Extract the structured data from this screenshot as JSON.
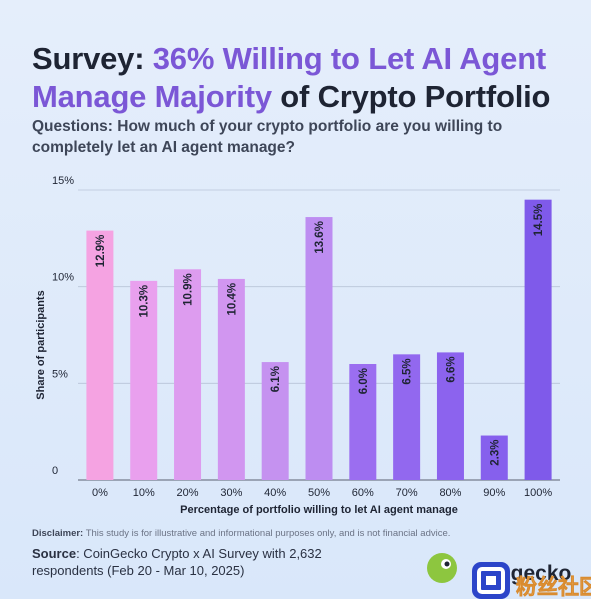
{
  "header": {
    "title_part1": "Survey: ",
    "title_accent1": "36% Willing to Let AI Agent",
    "title_accent2": "Manage Majority",
    "title_part2": " of Crypto Portfolio",
    "subtitle": "Questions: How much of your crypto portfolio are you willing to completely let an AI agent manage?"
  },
  "chart_data": {
    "type": "bar",
    "categories": [
      "0%",
      "10%",
      "20%",
      "30%",
      "40%",
      "50%",
      "60%",
      "70%",
      "80%",
      "90%",
      "100%"
    ],
    "values": [
      12.9,
      10.3,
      10.9,
      10.4,
      6.1,
      13.6,
      6.0,
      6.5,
      6.6,
      2.3,
      14.5
    ],
    "value_labels": [
      "12.9%",
      "10.3%",
      "10.9%",
      "10.4%",
      "6.1%",
      "13.6%",
      "6.0%",
      "6.5%",
      "6.6%",
      "2.3%",
      "14.5%"
    ],
    "colors": [
      "#f5a3e2",
      "#e9a0ee",
      "#dd9cef",
      "#d196f0",
      "#c592f0",
      "#bd8df1",
      "#9b6ef0",
      "#9268ef",
      "#8c63ee",
      "#8660ed",
      "#7f5aea"
    ],
    "xlabel": "Percentage of portfolio willing to let AI agent manage",
    "ylabel": "Share of participants",
    "ylim": [
      0,
      15
    ],
    "yticks": [
      0,
      5,
      10,
      15
    ],
    "ytick_labels": [
      "0",
      "5%",
      "10%",
      "15%"
    ],
    "grid": true,
    "legend": "none"
  },
  "footer": {
    "disclaimer_label": "Disclaimer:",
    "disclaimer_text": " This study is for illustrative and informational purposes only, and is not financial advice.",
    "source_label": "Source",
    "source_text": ": CoinGecko Crypto x AI Survey with 2,632 respondents (Feb 20 - Mar 10, 2025)",
    "logo_text": "ingecko",
    "watermark_text": "粉丝社区"
  }
}
